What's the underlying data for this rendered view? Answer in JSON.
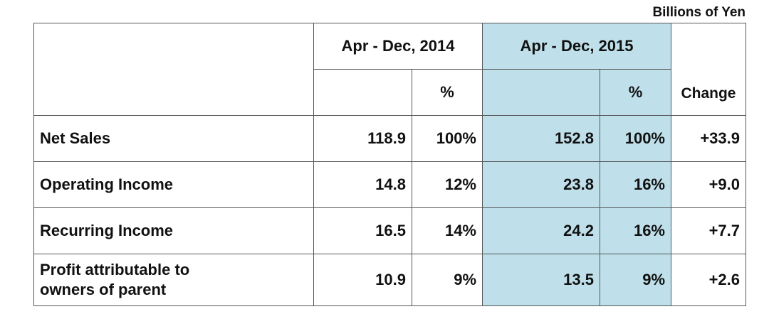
{
  "unit": "Billions of Yen",
  "table": {
    "header": {
      "period_2014": "Apr - Dec, 2014",
      "percent_2014": "%",
      "period_2015": "Apr - Dec, 2015",
      "percent_2015": "%",
      "change": "Change"
    },
    "rows": [
      [
        "Net Sales",
        "118.9",
        "100%",
        "152.8",
        "100%",
        "+33.9"
      ],
      [
        "Operating Income",
        "14.8",
        "12%",
        "23.8",
        "16%",
        "+9.0"
      ],
      [
        "Recurring Income",
        "16.5",
        "14%",
        "24.2",
        "16%",
        "+7.7"
      ],
      [
        "Profit attributable to owners of parent",
        "10.9",
        "9%",
        "13.5",
        "9%",
        "+2.6"
      ]
    ]
  }
}
